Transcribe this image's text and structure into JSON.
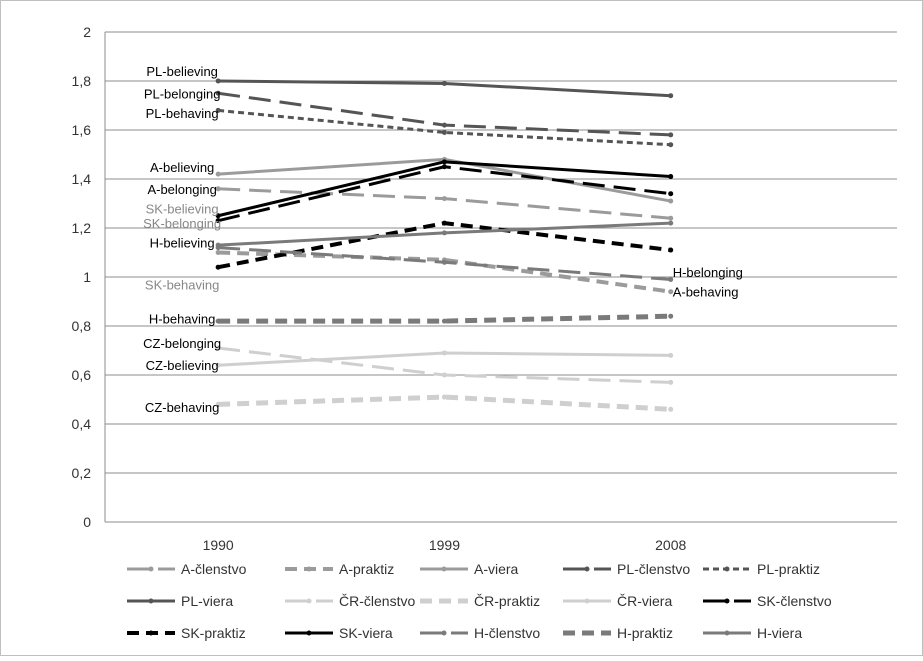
{
  "chart_data": {
    "type": "line",
    "categories": [
      "1990",
      "1999",
      "2008"
    ],
    "ylim": [
      0,
      2
    ],
    "y_ticks": [
      "0",
      "0,2",
      "0,4",
      "0,6",
      "0,8",
      "1",
      "1,2",
      "1,4",
      "1,6",
      "1,8",
      "2"
    ],
    "grid": "horizontal",
    "legend_position": "bottom",
    "series": [
      {
        "name": "A-členstvo",
        "values": [
          1.36,
          1.32,
          1.24
        ],
        "color": "#9b9b9b",
        "dash": "long",
        "width": 3
      },
      {
        "name": "A-praktiz",
        "values": [
          1.1,
          1.07,
          0.94
        ],
        "color": "#9b9b9b",
        "dash": "medium",
        "width": 4
      },
      {
        "name": "A-viera",
        "values": [
          1.42,
          1.48,
          1.31
        ],
        "color": "#9b9b9b",
        "dash": "solid",
        "width": 3
      },
      {
        "name": "PL-členstvo",
        "values": [
          1.75,
          1.62,
          1.58
        ],
        "color": "#555555",
        "dash": "long",
        "width": 3
      },
      {
        "name": "PL-praktiz",
        "values": [
          1.68,
          1.59,
          1.54
        ],
        "color": "#555555",
        "dash": "short",
        "width": 3
      },
      {
        "name": "PL-viera",
        "values": [
          1.8,
          1.79,
          1.74
        ],
        "color": "#555555",
        "dash": "solid",
        "width": 3
      },
      {
        "name": "ČR-členstvo",
        "values": [
          0.71,
          0.6,
          0.57
        ],
        "color": "#cfcfcf",
        "dash": "long",
        "width": 3
      },
      {
        "name": "ČR-praktiz",
        "values": [
          0.48,
          0.51,
          0.46
        ],
        "color": "#cfcfcf",
        "dash": "medium",
        "width": 5
      },
      {
        "name": "ČR-viera",
        "values": [
          0.64,
          0.69,
          0.68
        ],
        "color": "#cfcfcf",
        "dash": "solid",
        "width": 3
      },
      {
        "name": "SK-členstvo",
        "values": [
          1.23,
          1.45,
          1.34
        ],
        "color": "#000000",
        "dash": "long",
        "width": 3
      },
      {
        "name": "SK-praktiz",
        "values": [
          1.04,
          1.22,
          1.11
        ],
        "color": "#000000",
        "dash": "medium",
        "width": 4
      },
      {
        "name": "SK-viera",
        "values": [
          1.25,
          1.47,
          1.41
        ],
        "color": "#000000",
        "dash": "solid",
        "width": 3
      },
      {
        "name": "H-členstvo",
        "values": [
          1.12,
          1.06,
          0.99
        ],
        "color": "#7a7a7a",
        "dash": "long",
        "width": 3
      },
      {
        "name": "H-praktiz",
        "values": [
          0.82,
          0.82,
          0.84
        ],
        "color": "#7a7a7a",
        "dash": "medium",
        "width": 5
      },
      {
        "name": "H-viera",
        "values": [
          1.13,
          1.18,
          1.22
        ],
        "color": "#7a7a7a",
        "dash": "solid",
        "width": 3
      }
    ],
    "annotations": [
      {
        "text": "PL-believing",
        "x": "1990",
        "y": 1.84,
        "color": "#000000"
      },
      {
        "text": "PL-belonging",
        "x": "1990",
        "y": 1.75,
        "color": "#000000"
      },
      {
        "text": "PL-behaving",
        "x": "1990",
        "y": 1.67,
        "color": "#000000"
      },
      {
        "text": "A-believing",
        "x": "1990",
        "y": 1.45,
        "color": "#000000"
      },
      {
        "text": "A-belonging",
        "x": "1990",
        "y": 1.36,
        "color": "#000000"
      },
      {
        "text": "SK-believing",
        "x": "1990",
        "y": 1.28,
        "color": "#888888"
      },
      {
        "text": "SK-belonging",
        "x": "1990",
        "y": 1.22,
        "color": "#888888"
      },
      {
        "text": "H-believing",
        "x": "1990",
        "y": 1.14,
        "color": "#000000"
      },
      {
        "text": "SK-behaving",
        "x": "1990",
        "y": 0.97,
        "color": "#888888"
      },
      {
        "text": "H-behaving",
        "x": "1990",
        "y": 0.83,
        "color": "#000000"
      },
      {
        "text": "CZ-belonging",
        "x": "1990",
        "y": 0.73,
        "color": "#000000"
      },
      {
        "text": "CZ-believing",
        "x": "1990",
        "y": 0.64,
        "color": "#000000"
      },
      {
        "text": "CZ-behaving",
        "x": "1990",
        "y": 0.47,
        "color": "#000000"
      },
      {
        "text": "H-belonging",
        "x": "2008",
        "y": 1.02,
        "color": "#000000"
      },
      {
        "text": "A-behaving",
        "x": "2008",
        "y": 0.94,
        "color": "#000000"
      }
    ]
  }
}
